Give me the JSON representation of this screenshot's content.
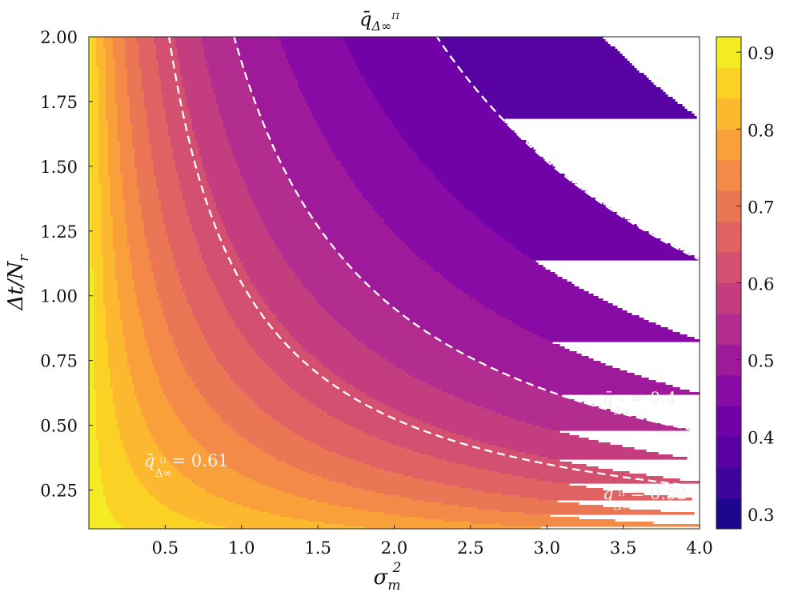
{
  "chart_data": {
    "type": "heatmap",
    "title": "q̄",
    "title_sub": "Δ∞",
    "title_sup": "Π",
    "xlabel": "σ",
    "xlabel_sub": "m",
    "xlabel_sup": "2",
    "ylabel": "Δt/N",
    "ylabel_sub": "r",
    "xlim": [
      0.0,
      4.0
    ],
    "ylim": [
      0.1,
      2.0
    ],
    "x_ticks": [
      "0.5",
      "1.0",
      "1.5",
      "2.0",
      "2.5",
      "3.0",
      "3.5",
      "4.0"
    ],
    "x_tick_values": [
      0.5,
      1.0,
      1.5,
      2.0,
      2.5,
      3.0,
      3.5,
      4.0
    ],
    "y_ticks": [
      "0.25",
      "0.50",
      "0.75",
      "1.00",
      "1.25",
      "1.50",
      "1.75",
      "2.00"
    ],
    "y_tick_values": [
      0.25,
      0.5,
      0.75,
      1.0,
      1.25,
      1.5,
      1.75,
      2.0
    ],
    "colormap": "plasma",
    "colorbar": {
      "range": [
        0.28,
        0.92
      ],
      "tick_values": [
        0.3,
        0.4,
        0.5,
        0.6,
        0.7,
        0.8,
        0.9
      ],
      "ticks": [
        "0.3",
        "0.4",
        "0.5",
        "0.6",
        "0.7",
        "0.8",
        "0.9"
      ]
    },
    "contour_levels": [
      0.28,
      0.32,
      0.36,
      0.4,
      0.44,
      0.48,
      0.52,
      0.56,
      0.6,
      0.64,
      0.68,
      0.72,
      0.76,
      0.8,
      0.84,
      0.88,
      0.92
    ],
    "highlighted_contours": [
      {
        "level": 0.61,
        "label_prefix": "q̄",
        "label_sub": "Δ∞",
        "label_sup": "Π",
        "label_value": " = 0.61",
        "label_at": [
          0.4,
          0.22
        ]
      },
      {
        "level": 0.52,
        "label_prefix": "q̄",
        "label_sub": "Δ∞",
        "label_sup": "Π",
        "label_value": " = 0.52",
        "label_at": [
          3.73,
          0.2
        ]
      },
      {
        "level": 0.4,
        "label_prefix": "q̄",
        "label_sub": "Δ∞",
        "label_sup": "Π",
        "label_value": " = 0.4",
        "label_at": [
          3.73,
          0.52
        ]
      }
    ],
    "grid": false
  }
}
